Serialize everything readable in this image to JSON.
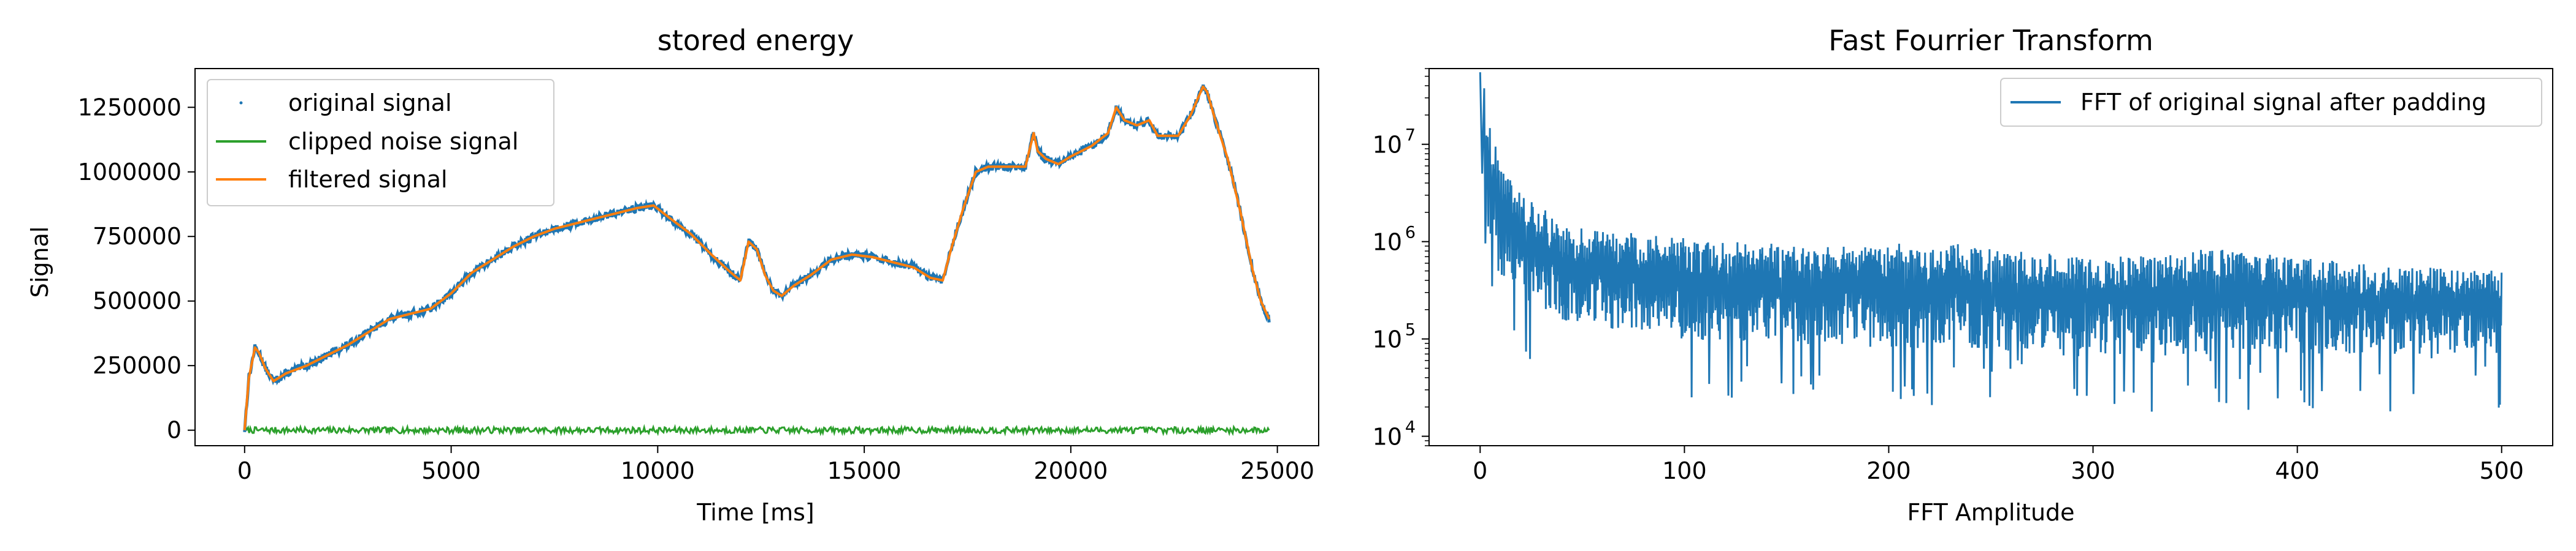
{
  "chart_data": [
    {
      "type": "line",
      "title": "stored energy",
      "xlabel": "Time [ms]",
      "ylabel": "Signal",
      "xlim": [
        -1200,
        26000
      ],
      "ylim": [
        -60000,
        1400000
      ],
      "xticks": [
        0,
        5000,
        10000,
        15000,
        20000,
        25000
      ],
      "xtick_labels": [
        "0",
        "5000",
        "10000",
        "15000",
        "20000",
        "25000"
      ],
      "yticks": [
        0,
        250000,
        500000,
        750000,
        1000000,
        1250000
      ],
      "ytick_labels": [
        "0",
        "250000",
        "500000",
        "750000",
        "1000000",
        "1250000"
      ],
      "legend": {
        "position": "top-left",
        "entries": [
          "original signal",
          "clipped noise signal",
          "filtered signal"
        ]
      },
      "grid": false,
      "series": [
        {
          "name": "original signal",
          "color": "#1f77b4",
          "style": "points",
          "x": [
            0,
            100,
            250,
            350,
            500,
            700,
            1000,
            1500,
            2000,
            2500,
            3000,
            3500,
            4000,
            4500,
            5000,
            5500,
            6000,
            6500,
            7000,
            7500,
            8000,
            8500,
            9000,
            9500,
            9900,
            10300,
            10800,
            11300,
            11700,
            12000,
            12200,
            12400,
            12600,
            12800,
            13000,
            13300,
            13700,
            14200,
            14700,
            15200,
            15700,
            16200,
            16600,
            16900,
            17100,
            17400,
            17700,
            18000,
            18500,
            18900,
            19100,
            19200,
            19400,
            19700,
            20000,
            20500,
            20900,
            21100,
            21300,
            21600,
            21900,
            22100,
            22300,
            22600,
            22900,
            23200,
            23300,
            23500,
            23800,
            24100,
            24400,
            24600,
            24800
          ],
          "y": [
            0,
            200000,
            320000,
            300000,
            240000,
            190000,
            220000,
            250000,
            290000,
            330000,
            380000,
            430000,
            450000,
            470000,
            530000,
            610000,
            660000,
            710000,
            750000,
            780000,
            800000,
            820000,
            840000,
            860000,
            870000,
            820000,
            760000,
            680000,
            620000,
            580000,
            730000,
            700000,
            600000,
            540000,
            520000,
            560000,
            600000,
            660000,
            680000,
            670000,
            650000,
            630000,
            590000,
            580000,
            700000,
            860000,
            1000000,
            1020000,
            1020000,
            1020000,
            1150000,
            1080000,
            1050000,
            1030000,
            1060000,
            1100000,
            1150000,
            1250000,
            1200000,
            1180000,
            1200000,
            1140000,
            1140000,
            1140000,
            1220000,
            1330000,
            1310000,
            1200000,
            1050000,
            850000,
            620000,
            500000,
            430000
          ]
        },
        {
          "name": "clipped noise signal",
          "color": "#2ca02c",
          "style": "noise-line",
          "x_range": [
            0,
            24800
          ],
          "amplitude": 12000,
          "mean": 0
        },
        {
          "name": "filtered signal",
          "color": "#ff7f0e",
          "style": "line",
          "x": [
            0,
            100,
            250,
            350,
            500,
            700,
            1000,
            1500,
            2000,
            2500,
            3000,
            3500,
            4000,
            4500,
            5000,
            5500,
            6000,
            6500,
            7000,
            7500,
            8000,
            8500,
            9000,
            9500,
            9900,
            10300,
            10800,
            11300,
            11700,
            12000,
            12200,
            12400,
            12600,
            12800,
            13000,
            13300,
            13700,
            14200,
            14700,
            15200,
            15700,
            16200,
            16600,
            16900,
            17100,
            17400,
            17700,
            18000,
            18500,
            18900,
            19100,
            19200,
            19400,
            19700,
            20000,
            20500,
            20900,
            21100,
            21300,
            21600,
            21900,
            22100,
            22300,
            22600,
            22900,
            23200,
            23300,
            23500,
            23800,
            24100,
            24400,
            24600,
            24800
          ],
          "y": [
            0,
            200000,
            320000,
            300000,
            240000,
            190000,
            220000,
            250000,
            290000,
            330000,
            380000,
            430000,
            450000,
            470000,
            530000,
            610000,
            660000,
            710000,
            750000,
            780000,
            800000,
            820000,
            840000,
            860000,
            870000,
            820000,
            760000,
            680000,
            620000,
            580000,
            730000,
            700000,
            600000,
            540000,
            520000,
            560000,
            600000,
            660000,
            680000,
            670000,
            650000,
            630000,
            590000,
            580000,
            700000,
            860000,
            1000000,
            1020000,
            1020000,
            1020000,
            1150000,
            1080000,
            1050000,
            1030000,
            1060000,
            1100000,
            1150000,
            1250000,
            1200000,
            1180000,
            1200000,
            1140000,
            1140000,
            1140000,
            1220000,
            1330000,
            1310000,
            1200000,
            1050000,
            850000,
            620000,
            500000,
            430000
          ]
        }
      ]
    },
    {
      "type": "line",
      "title": "Fast Fourrier Transform",
      "xlabel": "FFT Amplitude",
      "ylabel": "",
      "xlim": [
        -25,
        525
      ],
      "ylim": [
        8000,
        60000000
      ],
      "yscale": "log",
      "xticks": [
        0,
        100,
        200,
        300,
        400,
        500
      ],
      "xtick_labels": [
        "0",
        "100",
        "200",
        "300",
        "400",
        "500"
      ],
      "yticks": [
        10000,
        100000,
        1000000,
        10000000
      ],
      "ytick_labels": [
        {
          "base": "10",
          "exp": "4"
        },
        {
          "base": "10",
          "exp": "5"
        },
        {
          "base": "10",
          "exp": "6"
        },
        {
          "base": "10",
          "exp": "7"
        }
      ],
      "legend": {
        "position": "top-right",
        "entries": [
          "FFT of original signal after padding"
        ]
      },
      "grid": false,
      "series": [
        {
          "name": "FFT of original signal after padding",
          "color": "#1f77b4",
          "style": "spectrum",
          "x_range": [
            2,
            500
          ],
          "envelope_x": [
            2,
            5,
            10,
            20,
            40,
            60,
            80,
            100,
            120,
            150,
            180,
            200,
            230,
            260,
            300,
            330,
            360,
            400,
            430,
            460,
            500
          ],
          "envelope_upper": [
            50000000,
            15000000,
            6000000,
            3000000,
            1500000,
            1300000,
            1200000,
            1100000,
            1000000,
            950000,
            900000,
            950000,
            1000000,
            800000,
            700000,
            750000,
            850000,
            700000,
            600000,
            550000,
            500000
          ],
          "envelope_lower": [
            2000000,
            800000,
            400000,
            250000,
            150000,
            120000,
            110000,
            100000,
            95000,
            90000,
            85000,
            80000,
            80000,
            75000,
            70000,
            70000,
            70000,
            70000,
            70000,
            70000,
            70000
          ],
          "notable_peaks": [
            {
              "x": 0,
              "y": 55000000
            },
            {
              "x": 100,
              "y": 1900000
            }
          ]
        }
      ]
    }
  ]
}
